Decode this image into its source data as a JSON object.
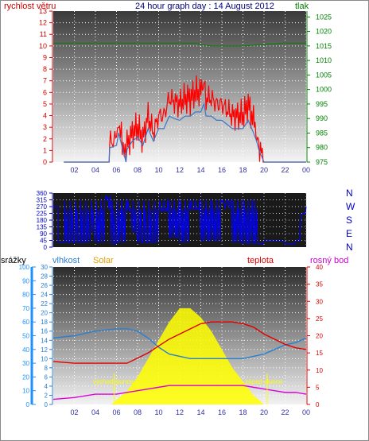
{
  "header": {
    "left_label": "rychlost větru",
    "title": "24 hour graph day : 14 August 2012",
    "right_label": "tlak"
  },
  "colors": {
    "wind": "#ff0000",
    "wind_dark": "#3a78c8",
    "pressure": "#008000",
    "direction": "#0000ff",
    "rain": "#1e90ff",
    "humidity": "#2a7fd0",
    "solar": "#ffff00",
    "temperature": "#e00000",
    "dewpoint": "#dd00dd"
  },
  "x_ticks": [
    "02",
    "04",
    "06",
    "08",
    "10",
    "12",
    "14",
    "16",
    "18",
    "20",
    "22",
    "00"
  ],
  "wind_chart": {
    "left_axis": {
      "ticks": [
        "0",
        "1",
        "2",
        "3",
        "4",
        "5",
        "6",
        "7",
        "8",
        "9",
        "10",
        "11",
        "12",
        "13"
      ],
      "range": [
        0,
        13
      ]
    },
    "right_axis": {
      "ticks": [
        "975",
        "980",
        "985",
        "990",
        "995",
        "1000",
        "1005",
        "1010",
        "1015",
        "1020",
        "1025"
      ],
      "range": [
        975,
        1027
      ]
    }
  },
  "direction_chart": {
    "left_axis": {
      "ticks": [
        "0",
        "45",
        "90",
        "135",
        "180",
        "225",
        "270",
        "315",
        "360"
      ],
      "range": [
        0,
        360
      ]
    },
    "right_axis": {
      "ticks": [
        "N",
        "W",
        "S",
        "E",
        "N"
      ]
    }
  },
  "weather_chart": {
    "labels": {
      "rain": "srážky",
      "humidity": "vlhkost",
      "solar": "Solar",
      "temperature": "teplota",
      "dewpoint": "rosný bod"
    },
    "rain_axis": {
      "ticks": [
        "0",
        "10",
        "20",
        "30",
        "40",
        "50",
        "60",
        "70",
        "80",
        "90",
        "100"
      ]
    },
    "humidity_axis": {
      "ticks": [
        "0",
        "2",
        "4",
        "6",
        "8",
        "10",
        "12",
        "14",
        "16",
        "18",
        "20",
        "22",
        "24",
        "26",
        "28",
        "30"
      ]
    },
    "temp_axis": {
      "ticks": [
        "0",
        "5",
        "10",
        "15",
        "20",
        "25",
        "30",
        "35",
        "40"
      ]
    },
    "annotations": {
      "sunrise": "východ slunce",
      "sunset": "západ slunce"
    }
  },
  "chart_data": [
    {
      "type": "line",
      "x_unit": "hour",
      "series": [
        {
          "name": "rychlost větru",
          "axis": "left",
          "x": [
            1,
            5.3,
            5.35,
            6,
            6.2,
            6.9,
            7,
            7.5,
            8,
            8.5,
            9,
            9.5,
            10,
            10.5,
            11,
            11.5,
            12,
            12.5,
            13,
            13.5,
            14,
            14.3,
            14.5,
            15,
            15.5,
            16,
            16.5,
            17,
            17.5,
            18,
            18.5,
            19,
            19.3,
            19.5,
            20,
            24
          ],
          "y": [
            0,
            0,
            1.7,
            2,
            3.5,
            0,
            1.5,
            2.5,
            3,
            2,
            4,
            2.5,
            4,
            4,
            5.5,
            5.2,
            5,
            5.5,
            5.5,
            6,
            6,
            7,
            5.5,
            5.5,
            5,
            5,
            4.5,
            4,
            4,
            4,
            5,
            3.5,
            2.5,
            1.5,
            0,
            0
          ]
        },
        {
          "name": "tlak",
          "axis": "right",
          "x": [
            0,
            2,
            4,
            6,
            8,
            10,
            12,
            13.5,
            14,
            15,
            16,
            18,
            20,
            22,
            24
          ],
          "y": [
            1016,
            1016,
            1016,
            1016,
            1016,
            1016,
            1016,
            1016,
            1015.5,
            1015,
            1015,
            1015,
            1015.5,
            1016,
            1016
          ]
        }
      ]
    },
    {
      "type": "line",
      "x_unit": "hour",
      "series": [
        {
          "name": "direction",
          "x": [
            0,
            0.5,
            1,
            1.5,
            2,
            2.5,
            3,
            3.5,
            4,
            5,
            5.5,
            6,
            7,
            7.5,
            8,
            8.5,
            9,
            9.5,
            10,
            11,
            12,
            13,
            14,
            15,
            16,
            17,
            18,
            19,
            20,
            21,
            22,
            23,
            23.5,
            24
          ],
          "y": [
            270,
            30,
            30,
            30,
            30,
            30,
            30,
            90,
            30,
            340,
            20,
            30,
            240,
            100,
            30,
            30,
            30,
            30,
            240,
            60,
            30,
            250,
            40,
            40,
            300,
            30,
            20,
            20,
            40,
            40,
            20,
            40,
            220,
            270
          ]
        }
      ]
    },
    {
      "type": "line",
      "x_unit": "hour",
      "series": [
        {
          "name": "vlhkost",
          "axis": "humidity",
          "x": [
            0,
            2,
            4,
            6,
            7,
            8,
            9,
            10,
            11,
            12,
            13,
            14,
            15,
            16,
            17,
            18,
            19,
            20,
            21,
            22,
            23,
            24
          ],
          "y": [
            14.5,
            15,
            16,
            16.5,
            16.5,
            16,
            14.5,
            12.5,
            11,
            10.5,
            10,
            10,
            10,
            10,
            10,
            10,
            10.5,
            11,
            12,
            13,
            13.5,
            14.5
          ]
        },
        {
          "name": "teplota",
          "axis": "temp",
          "x": [
            0,
            2,
            4,
            6,
            7,
            8,
            9,
            10,
            11,
            12,
            13,
            14,
            15,
            16,
            17,
            18,
            19,
            20,
            21,
            22,
            23,
            24
          ],
          "y": [
            12.5,
            12,
            12,
            12,
            12,
            13.5,
            15,
            17,
            19,
            20.5,
            22,
            23.5,
            24,
            24,
            24,
            23.5,
            22.5,
            20.5,
            19,
            17.5,
            16.5,
            16
          ]
        },
        {
          "name": "rosný bod",
          "axis": "temp",
          "x": [
            0,
            2,
            4,
            6,
            7,
            8,
            9,
            10,
            11,
            12,
            13,
            14,
            15,
            16,
            17,
            18,
            19,
            20,
            21,
            22,
            23,
            24
          ],
          "y": [
            1.5,
            2,
            3,
            3,
            3.5,
            4,
            4.5,
            5,
            5.5,
            5.5,
            5.5,
            5.5,
            5.5,
            5.5,
            5.5,
            5.5,
            5,
            4.5,
            4,
            3.5,
            3.5,
            3
          ]
        },
        {
          "name": "Solar",
          "axis": "humidity",
          "x": [
            5.5,
            6,
            7,
            8,
            9,
            10,
            11,
            12,
            13,
            14,
            15,
            16,
            17,
            18,
            19,
            20
          ],
          "y": [
            0,
            1,
            3,
            6,
            10,
            14,
            18,
            21,
            21,
            19,
            16,
            12,
            8,
            5,
            2,
            0
          ]
        },
        {
          "name": "srážky",
          "axis": "rain",
          "x": [
            0,
            24
          ],
          "y": [
            0,
            0
          ]
        }
      ]
    }
  ]
}
